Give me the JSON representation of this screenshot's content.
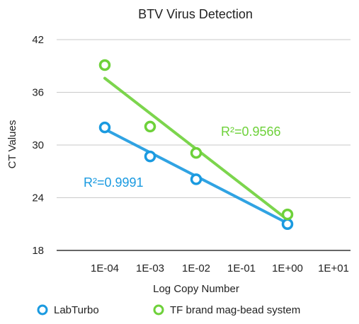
{
  "chart_data": {
    "type": "scatter",
    "title": "BTV Virus Detection",
    "xlabel": "Log Copy Number",
    "ylabel": "CT Values",
    "x_categories": [
      "1E-04",
      "1E-03",
      "1E-02",
      "1E-01",
      "1E+00",
      "1E+01"
    ],
    "ylim": [
      18,
      42
    ],
    "yticks": [
      18,
      24,
      30,
      36,
      42
    ],
    "grid": "horizontal",
    "legend_position": "bottom",
    "series": [
      {
        "name": "LabTurbo",
        "color": "#1a9ae0",
        "points": [
          {
            "x": "1E-04",
            "y": 32.0
          },
          {
            "x": "1E-03",
            "y": 28.7
          },
          {
            "x": "1E-02",
            "y": 26.1
          },
          {
            "x": "1E+00",
            "y": 21.0
          }
        ],
        "trendline": {
          "from": {
            "x": "1E-04",
            "y": 31.8
          },
          "to": {
            "x": "1E+00",
            "y": 21.1
          }
        },
        "r2_label": "R²=0.9991"
      },
      {
        "name": "TF brand mag-bead system",
        "color": "#6ed13a",
        "points": [
          {
            "x": "1E-04",
            "y": 39.1
          },
          {
            "x": "1E-03",
            "y": 32.1
          },
          {
            "x": "1E-02",
            "y": 29.1
          },
          {
            "x": "1E+00",
            "y": 22.1
          }
        ],
        "trendline": {
          "from": {
            "x": "1E-04",
            "y": 37.6
          },
          "to": {
            "x": "1E+00",
            "y": 21.5
          }
        },
        "r2_label": "R²=0.9566"
      }
    ]
  }
}
